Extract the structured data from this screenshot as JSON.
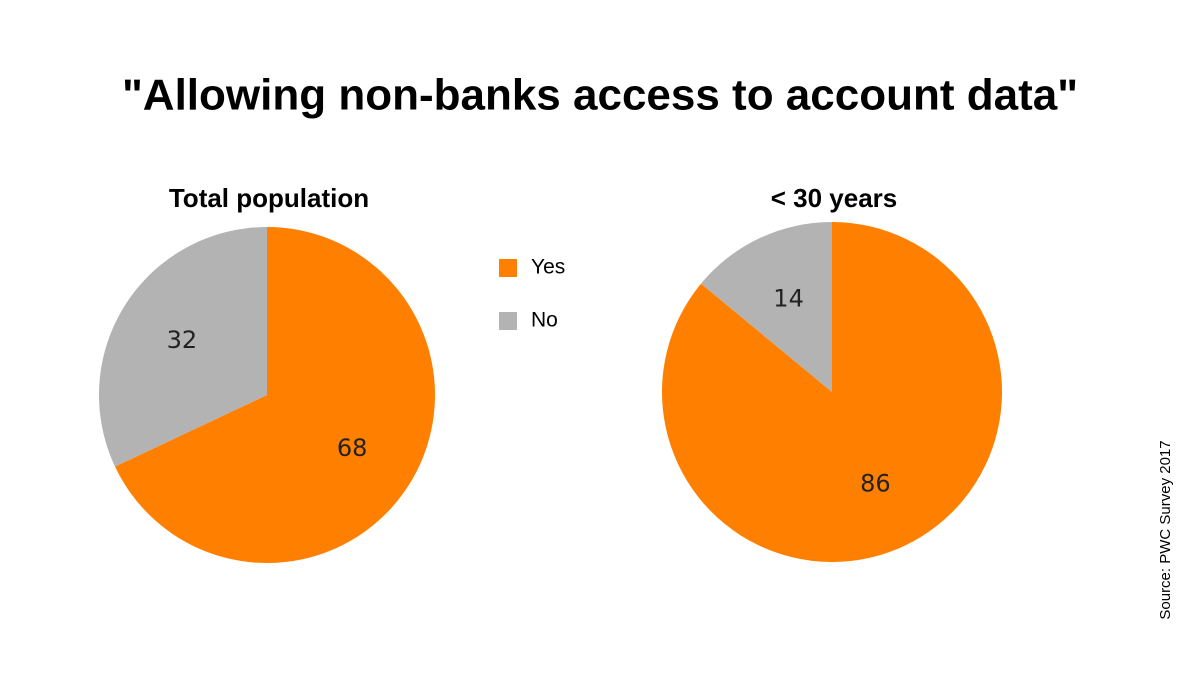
{
  "title": "\"Allowing non-banks access to account data\"",
  "source": "Source: PWC Survey 2017",
  "chart_data": [
    {
      "type": "pie",
      "title": "Total population",
      "categories": [
        "Yes",
        "No"
      ],
      "values": [
        68,
        32
      ],
      "colors": [
        "#ff8000",
        "#b3b3b3"
      ]
    },
    {
      "type": "pie",
      "title": "< 30 years",
      "categories": [
        "Yes",
        "No"
      ],
      "values": [
        86,
        14
      ],
      "colors": [
        "#ff8000",
        "#b3b3b3"
      ]
    }
  ]
}
